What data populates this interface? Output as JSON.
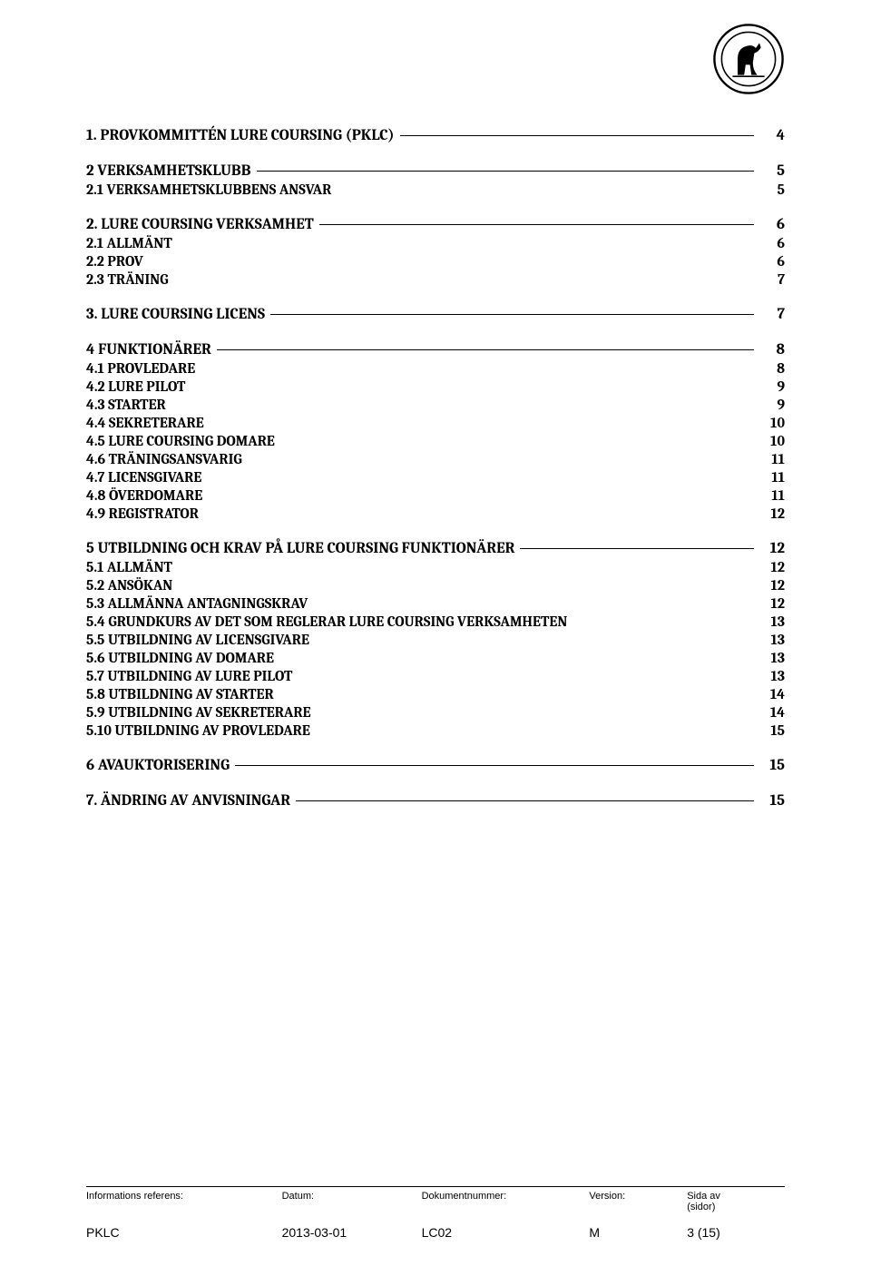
{
  "logo": {
    "name": "club-logo"
  },
  "toc": [
    {
      "level": 1,
      "title": "1. PROVKOMMITTÉN LURE COURSING (PKLC)",
      "page": "4"
    },
    {
      "level": 1,
      "title": "2 VERKSAMHETSKLUBB",
      "page": "5"
    },
    {
      "level": 2,
      "title": "2.1 VERKSAMHETSKLUBBENS ANSVAR",
      "page": "5"
    },
    {
      "level": 1,
      "title": "2. LURE COURSING VERKSAMHET",
      "page": "6"
    },
    {
      "level": 2,
      "title": "2.1 ALLMÄNT",
      "page": "6"
    },
    {
      "level": 2,
      "title": "2.2 PROV",
      "page": "6"
    },
    {
      "level": 2,
      "title": "2.3 TRÄNING",
      "page": "7"
    },
    {
      "level": 1,
      "title": "3. LURE COURSING LICENS",
      "page": "7"
    },
    {
      "level": 1,
      "title": "4 FUNKTIONÄRER",
      "page": "8"
    },
    {
      "level": 2,
      "title": "4.1 PROVLEDARE",
      "page": "8"
    },
    {
      "level": 2,
      "title": "4.2 LURE PILOT",
      "page": "9"
    },
    {
      "level": 2,
      "title": "4.3 STARTER",
      "page": "9"
    },
    {
      "level": 2,
      "title": "4.4 SEKRETERARE",
      "page": "10"
    },
    {
      "level": 2,
      "title": "4.5 LURE COURSING DOMARE",
      "page": "10"
    },
    {
      "level": 2,
      "title": "4.6 TRÄNINGSANSVARIG",
      "page": "11"
    },
    {
      "level": 2,
      "title": "4.7 LICENSGIVARE",
      "page": "11"
    },
    {
      "level": 2,
      "title": "4.8 ÖVERDOMARE",
      "page": "11"
    },
    {
      "level": 2,
      "title": "4.9 REGISTRATOR",
      "page": "12"
    },
    {
      "level": 1,
      "title": "5 UTBILDNING OCH KRAV PÅ LURE COURSING FUNKTIONÄRER",
      "page": "12"
    },
    {
      "level": 2,
      "title": "5.1 ALLMÄNT",
      "page": "12"
    },
    {
      "level": 2,
      "title": "5.2 ANSÖKAN",
      "page": "12"
    },
    {
      "level": 2,
      "title": "5.3 ALLMÄNNA ANTAGNINGSKRAV",
      "page": "12"
    },
    {
      "level": 2,
      "title": "5.4 GRUNDKURS AV DET SOM REGLERAR LURE COURSING VERKSAMHETEN",
      "page": "13"
    },
    {
      "level": 2,
      "title": "5.5 UTBILDNING AV LICENSGIVARE",
      "page": "13"
    },
    {
      "level": 2,
      "title": "5.6 UTBILDNING AV DOMARE",
      "page": "13"
    },
    {
      "level": 2,
      "title": "5.7 UTBILDNING AV LURE PILOT",
      "page": "13"
    },
    {
      "level": 2,
      "title": "5.8 UTBILDNING AV STARTER",
      "page": "14"
    },
    {
      "level": 2,
      "title": "5.9 UTBILDNING AV SEKRETERARE",
      "page": "14"
    },
    {
      "level": 2,
      "title": "5.10 UTBILDNING AV PROVLEDARE",
      "page": "15"
    },
    {
      "level": 1,
      "title": "6 AVAUKTORISERING",
      "page": "15"
    },
    {
      "level": 1,
      "title": "7. ÄNDRING AV ANVISNINGAR",
      "page": "15"
    }
  ],
  "footer": {
    "labels": {
      "c1": "Informations referens:",
      "c2": "Datum:",
      "c3": "Dokumentnummer:",
      "c4": "Version:",
      "c5a": "Sida av",
      "c5b": "(sidor)"
    },
    "values": {
      "c1": "PKLC",
      "c2": "2013-03-01",
      "c3": "LC02",
      "c4": "M",
      "c5": "3 (15)"
    }
  }
}
